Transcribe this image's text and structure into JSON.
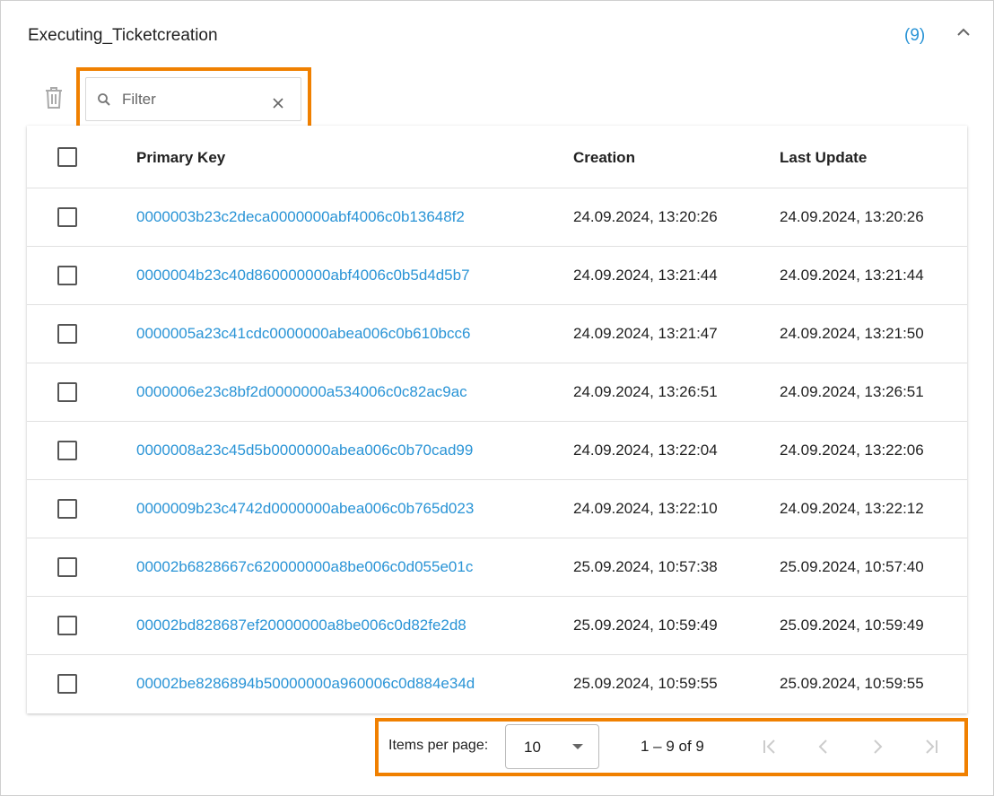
{
  "panel": {
    "title": "Executing_Ticketcreation",
    "count": "(9)"
  },
  "filter": {
    "placeholder": "Filter",
    "value": ""
  },
  "table": {
    "headers": {
      "primary_key": "Primary Key",
      "creation": "Creation",
      "last_update": "Last Update"
    },
    "rows": [
      {
        "key": "0000003b23c2deca0000000abf4006c0b13648f2",
        "creation": "24.09.2024, 13:20:26",
        "last_update": "24.09.2024, 13:20:26"
      },
      {
        "key": "0000004b23c40d860000000abf4006c0b5d4d5b7",
        "creation": "24.09.2024, 13:21:44",
        "last_update": "24.09.2024, 13:21:44"
      },
      {
        "key": "0000005a23c41cdc0000000abea006c0b610bcc6",
        "creation": "24.09.2024, 13:21:47",
        "last_update": "24.09.2024, 13:21:50"
      },
      {
        "key": "0000006e23c8bf2d0000000a534006c0c82ac9ac",
        "creation": "24.09.2024, 13:26:51",
        "last_update": "24.09.2024, 13:26:51"
      },
      {
        "key": "0000008a23c45d5b0000000abea006c0b70cad99",
        "creation": "24.09.2024, 13:22:04",
        "last_update": "24.09.2024, 13:22:06"
      },
      {
        "key": "0000009b23c4742d0000000abea006c0b765d023",
        "creation": "24.09.2024, 13:22:10",
        "last_update": "24.09.2024, 13:22:12"
      },
      {
        "key": "00002b6828667c620000000a8be006c0d055e01c",
        "creation": "25.09.2024, 10:57:38",
        "last_update": "25.09.2024, 10:57:40"
      },
      {
        "key": "00002bd828687ef20000000a8be006c0d82fe2d8",
        "creation": "25.09.2024, 10:59:49",
        "last_update": "25.09.2024, 10:59:49"
      },
      {
        "key": "00002be8286894b50000000a960006c0d884e34d",
        "creation": "25.09.2024, 10:59:55",
        "last_update": "25.09.2024, 10:59:55"
      }
    ]
  },
  "paginator": {
    "items_per_page_label": "Items per page:",
    "page_size": "10",
    "range": "1 – 9 of 9"
  },
  "colors": {
    "accent": "#2a94d6",
    "highlight": "#f08000"
  }
}
